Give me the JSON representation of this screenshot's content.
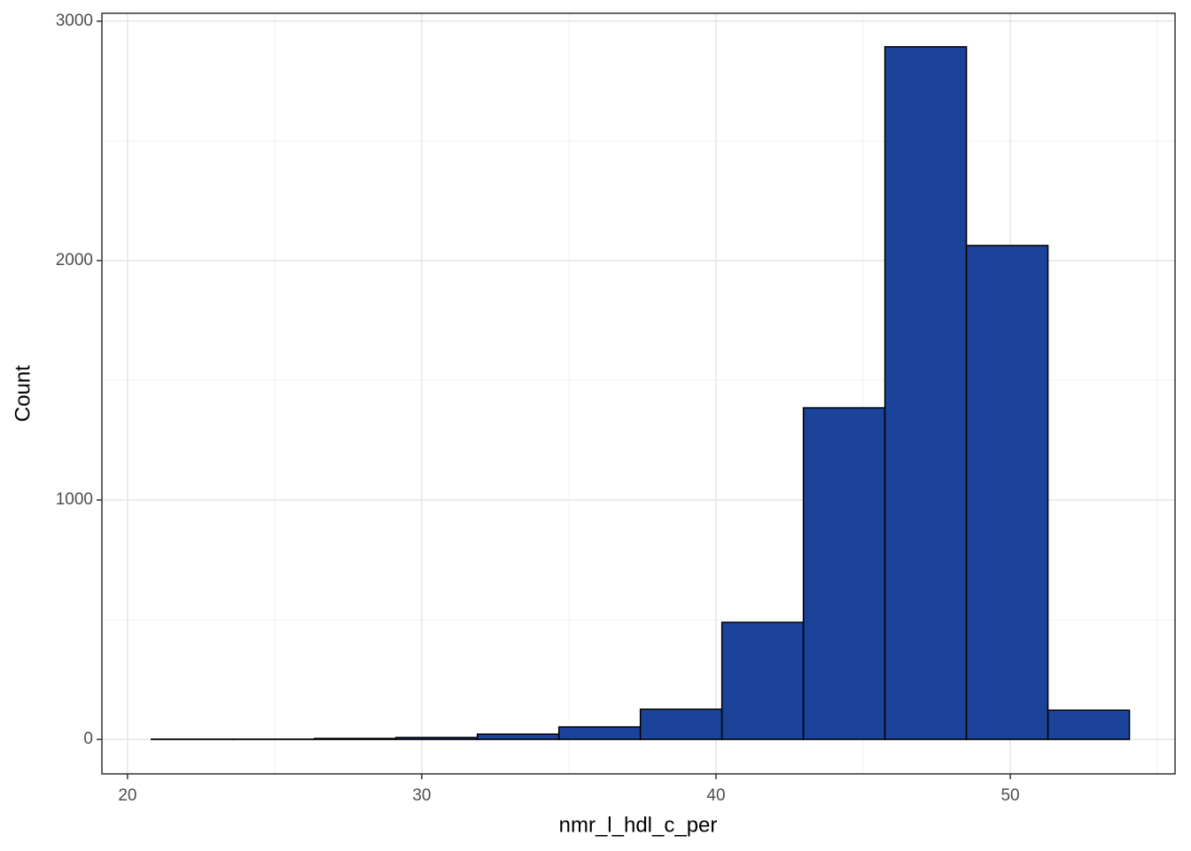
{
  "chart_data": {
    "type": "histogram",
    "x_label": "nmr_l_hdl_c_per",
    "y_label": "Count",
    "bins": [
      20.81,
      23.58,
      26.35,
      29.12,
      31.89,
      34.66,
      37.43,
      40.2,
      42.97,
      45.74,
      48.51,
      51.28,
      54.05
    ],
    "values": [
      1,
      1,
      4,
      8,
      22,
      52,
      126,
      489,
      1385,
      2893,
      2063,
      122
    ],
    "color": "#1a4399",
    "edge_color": "#000000",
    "xlim": [
      19.13,
      55.6
    ],
    "xticks": [
      20,
      30,
      40,
      50
    ],
    "ylim": [
      -144,
      3033
    ],
    "yticks": [
      0,
      1000,
      2000,
      3000
    ],
    "x_minor_grid": [
      25,
      35,
      45,
      55
    ],
    "y_minor_grid": [
      500,
      1500,
      2500
    ],
    "grid": true
  }
}
